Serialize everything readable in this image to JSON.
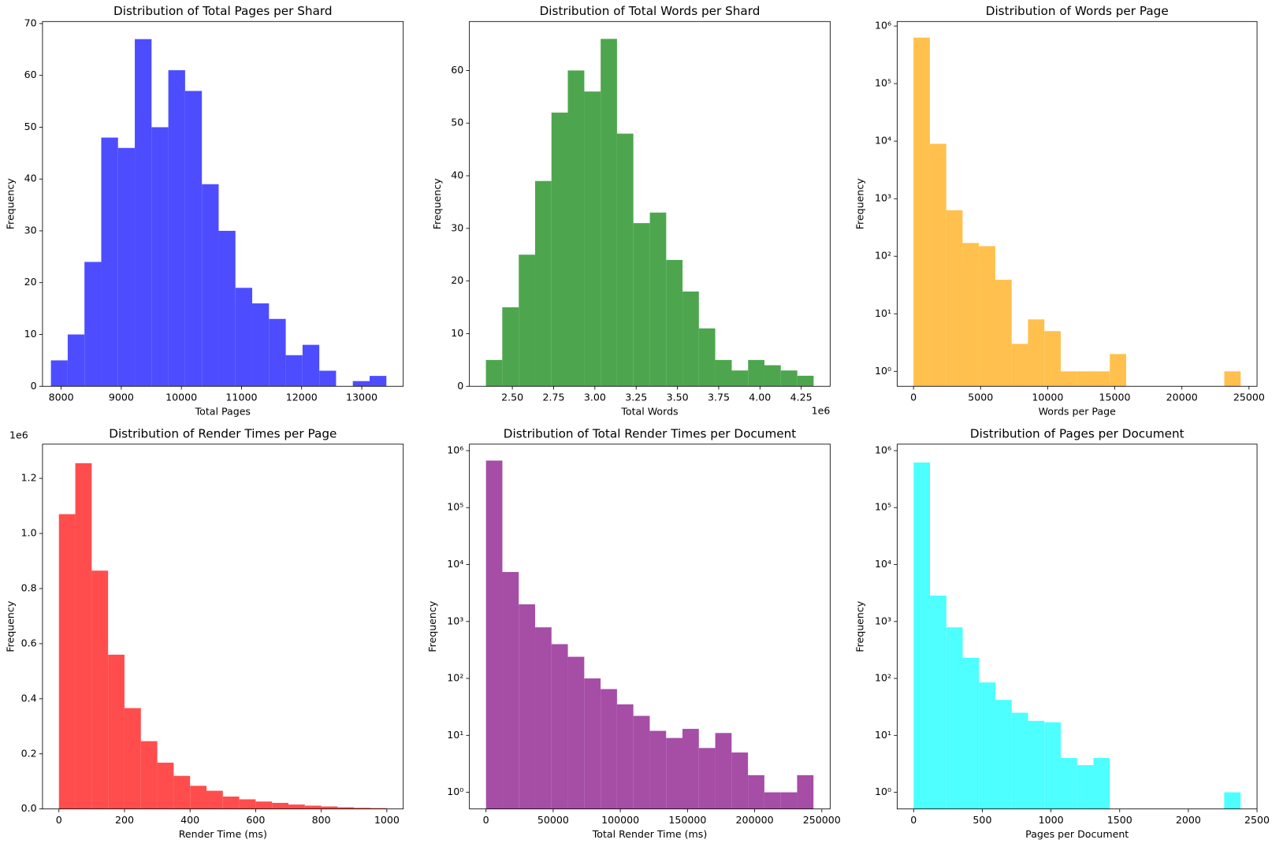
{
  "chart_data": [
    {
      "type": "histogram",
      "title": "Distribution of Total Pages per Shard",
      "xlabel": "Total Pages",
      "ylabel": "Frequency",
      "color": "#4d4dff",
      "bins": [
        7830,
        8109,
        8388,
        8667,
        8946,
        9225,
        9504,
        9783,
        10062,
        10341,
        10620,
        10899,
        11178,
        11457,
        11736,
        12015,
        12294,
        12573,
        12852,
        13131,
        13410
      ],
      "values": [
        5,
        10,
        24,
        48,
        46,
        67,
        50,
        61,
        57,
        39,
        30,
        19,
        16,
        13,
        6,
        8,
        3,
        0,
        1,
        2
      ],
      "xlim": [
        7690,
        13690
      ],
      "xticks": [
        8000,
        9000,
        10000,
        11000,
        12000,
        13000
      ],
      "ylim": [
        0,
        70.4
      ],
      "yticks": [
        0,
        10,
        20,
        30,
        40,
        50,
        60,
        70
      ],
      "log_y": false
    },
    {
      "type": "histogram",
      "title": "Distribution of Total Words per Shard",
      "xlabel": "Total Words",
      "ylabel": "Frequency",
      "color": "#4da64d",
      "x_offset_label": "1e6",
      "bins": [
        2.34,
        2.439,
        2.539,
        2.638,
        2.737,
        2.836,
        2.936,
        3.035,
        3.134,
        3.233,
        3.333,
        3.432,
        3.531,
        3.63,
        3.729,
        3.829,
        3.928,
        4.027,
        4.126,
        4.226,
        4.325
      ],
      "values": [
        5,
        15,
        25,
        39,
        52,
        60,
        56,
        66,
        48,
        31,
        33,
        24,
        18,
        11,
        5,
        3,
        5,
        4,
        3,
        2
      ],
      "xlim": [
        2.24,
        4.425
      ],
      "xticks": [
        {
          "value": 2.5,
          "label": "2.50"
        },
        {
          "value": 2.75,
          "label": "2.75"
        },
        {
          "value": 3.0,
          "label": "3.00"
        },
        {
          "value": 3.25,
          "label": "3.25"
        },
        {
          "value": 3.5,
          "label": "3.50"
        },
        {
          "value": 3.75,
          "label": "3.75"
        },
        {
          "value": 4.0,
          "label": "4.00"
        },
        {
          "value": 4.25,
          "label": "4.25"
        }
      ],
      "ylim": [
        0,
        69.3
      ],
      "yticks": [
        0,
        10,
        20,
        30,
        40,
        50,
        60
      ],
      "log_y": false
    },
    {
      "type": "histogram",
      "title": "Distribution of Words per Page",
      "xlabel": "Words per Page",
      "ylabel": "Frequency",
      "color": "#ffc04d",
      "bins": [
        0,
        1219,
        2438,
        3657,
        4876,
        6095,
        7314,
        8533,
        9752,
        10971,
        12190,
        13409,
        14628,
        15847,
        17066,
        18285,
        19504,
        20723,
        21942,
        23161,
        24380
      ],
      "values": [
        630000,
        9000,
        630,
        170,
        150,
        39,
        3,
        8,
        5,
        1,
        1,
        1,
        2,
        0,
        0,
        0,
        0,
        0,
        0,
        1
      ],
      "xlim": [
        -1219,
        25600
      ],
      "xticks": [
        0,
        5000,
        10000,
        15000,
        20000,
        25000
      ],
      "ylim": [
        0.55,
        1200000
      ],
      "yticks": [
        {
          "value": 1,
          "label": "10⁰"
        },
        {
          "value": 10,
          "label": "10¹"
        },
        {
          "value": 100,
          "label": "10²"
        },
        {
          "value": 1000,
          "label": "10³"
        },
        {
          "value": 10000,
          "label": "10⁴"
        },
        {
          "value": 100000,
          "label": "10⁵"
        },
        {
          "value": 1000000,
          "label": "10⁶"
        }
      ],
      "log_y": true
    },
    {
      "type": "histogram",
      "title": "Distribution of Render Times per Page",
      "xlabel": "Render Time (ms)",
      "ylabel": "Frequency",
      "color": "#ff4d4d",
      "y_offset_label": "1e6",
      "bins": [
        0,
        50,
        100,
        150,
        200,
        250,
        300,
        350,
        400,
        450,
        500,
        550,
        600,
        650,
        700,
        750,
        800,
        850,
        900,
        950,
        1000
      ],
      "values": [
        1070000,
        1255000,
        865000,
        560000,
        366000,
        246000,
        168000,
        120000,
        84000,
        66000,
        45000,
        35000,
        27000,
        22000,
        16000,
        12000,
        9000,
        6000,
        4000,
        3000
      ],
      "xlim": [
        -50,
        1050
      ],
      "xticks": [
        0,
        200,
        400,
        600,
        800,
        1000
      ],
      "ylim": [
        0,
        1324000
      ],
      "yticks": [
        {
          "value": 0,
          "label": "0.0"
        },
        {
          "value": 200000,
          "label": "0.2"
        },
        {
          "value": 400000,
          "label": "0.4"
        },
        {
          "value": 600000,
          "label": "0.6"
        },
        {
          "value": 800000,
          "label": "0.8"
        },
        {
          "value": 1000000,
          "label": "1.0"
        },
        {
          "value": 1200000,
          "label": "1.2"
        }
      ],
      "log_y": false
    },
    {
      "type": "histogram",
      "title": "Distribution of Total Render Times per Document",
      "xlabel": "Total Render Time (ms)",
      "ylabel": "Frequency",
      "color": "#a64da6",
      "bins": [
        0,
        12190,
        24380,
        36570,
        48760,
        60950,
        73140,
        85330,
        97520,
        109710,
        121900,
        134090,
        146280,
        158470,
        170660,
        182850,
        195040,
        207230,
        219420,
        231610,
        243800
      ],
      "values": [
        670000,
        7400,
        2000,
        790,
        400,
        240,
        100,
        65,
        35,
        22,
        12,
        9,
        13,
        6,
        11,
        5,
        2,
        1,
        1,
        2
      ],
      "xlim": [
        -12350,
        256200
      ],
      "xticks": [
        0,
        50000,
        100000,
        150000,
        200000,
        250000
      ],
      "ylim": [
        0.51,
        1300000
      ],
      "yticks": [
        {
          "value": 1,
          "label": "10⁰"
        },
        {
          "value": 10,
          "label": "10¹"
        },
        {
          "value": 100,
          "label": "10²"
        },
        {
          "value": 1000,
          "label": "10³"
        },
        {
          "value": 10000,
          "label": "10⁴"
        },
        {
          "value": 100000,
          "label": "10⁵"
        },
        {
          "value": 1000000,
          "label": "10⁶"
        }
      ],
      "log_y": true
    },
    {
      "type": "histogram",
      "title": "Distribution of Pages per Document",
      "xlabel": "Pages per Document",
      "ylabel": "Frequency",
      "color": "#4dffff",
      "bins": [
        0,
        119,
        238,
        357,
        476,
        595,
        714,
        833,
        952,
        1071,
        1190,
        1309,
        1428,
        1547,
        1666,
        1785,
        1904,
        2023,
        2142,
        2261,
        2380
      ],
      "values": [
        620000,
        2850,
        790,
        230,
        85,
        42,
        25,
        18,
        17,
        4,
        3,
        4,
        0,
        0,
        0,
        0,
        0,
        0,
        0,
        1
      ],
      "xlim": [
        -120,
        2500
      ],
      "xticks": [
        0,
        500,
        1000,
        1500,
        2000,
        2500
      ],
      "ylim": [
        0.51,
        1300000
      ],
      "yticks": [
        {
          "value": 1,
          "label": "10⁰"
        },
        {
          "value": 10,
          "label": "10¹"
        },
        {
          "value": 100,
          "label": "10²"
        },
        {
          "value": 1000,
          "label": "10³"
        },
        {
          "value": 10000,
          "label": "10⁴"
        },
        {
          "value": 100000,
          "label": "10⁵"
        },
        {
          "value": 1000000,
          "label": "10⁶"
        }
      ],
      "log_y": true
    }
  ]
}
